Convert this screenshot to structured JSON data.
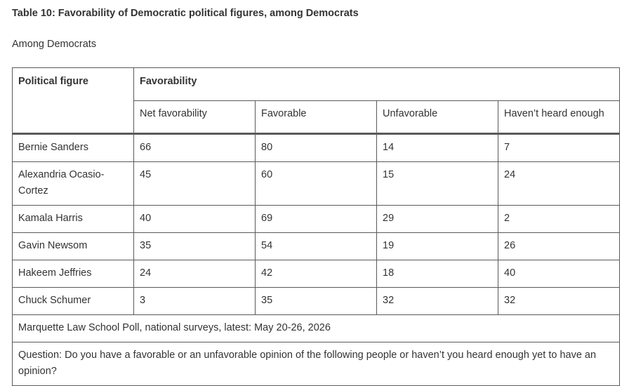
{
  "title": "Table 10: Favorability of Democratic political figures, among Democrats",
  "subtitle": "Among Democrats",
  "table": {
    "header_first": "Political figure",
    "header_group": "Favorability",
    "columns": [
      "Net favorability",
      "Favorable",
      "Unfavorable",
      "Haven’t heard enough"
    ],
    "rows": [
      {
        "name": "Bernie Sanders",
        "values": [
          "66",
          "80",
          "14",
          "7"
        ]
      },
      {
        "name": "Alexandria Ocasio-Cortez",
        "values": [
          "45",
          "60",
          "15",
          "24"
        ]
      },
      {
        "name": "Kamala Harris",
        "values": [
          "40",
          "69",
          "29",
          "2"
        ]
      },
      {
        "name": "Gavin Newsom",
        "values": [
          "35",
          "54",
          "19",
          "26"
        ]
      },
      {
        "name": "Hakeem Jeffries",
        "values": [
          "24",
          "42",
          "18",
          "40"
        ]
      },
      {
        "name": "Chuck Schumer",
        "values": [
          "3",
          "35",
          "32",
          "32"
        ]
      }
    ],
    "source_note": "Marquette Law School Poll, national surveys, latest: May 20-26, 2026",
    "question_note": "Question: Do you have a favorable or an unfavorable opinion of the following people or haven’t you heard enough yet to have an opinion?"
  }
}
